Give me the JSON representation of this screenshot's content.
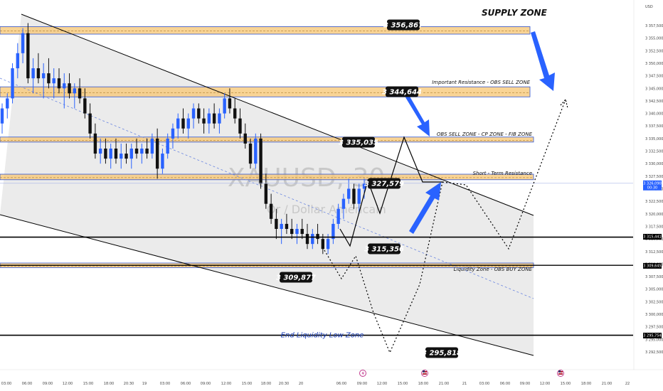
{
  "chart_data": {
    "type": "candlestick",
    "currency": "USD",
    "watermark": {
      "symbol": "XAUUSD, 30",
      "name": "Or / Dollar Américain"
    },
    "title": "SUPPLY ZONE",
    "y_axis": {
      "range": [
        3290,
        3360
      ],
      "ticks": [
        "3 292,500",
        "3 295,000",
        "3 297,500",
        "3 300,000",
        "3 302,500",
        "3 305,000",
        "3 307,500",
        "3 310,000",
        "3 312,500",
        "3 315,000",
        "3 317,500",
        "3 320,000",
        "3 322,500",
        "3 325,000",
        "3 327,500",
        "3 330,000",
        "3 332,500",
        "3 335,000",
        "3 337,500",
        "3 340,000",
        "3 342,500",
        "3 345,000",
        "3 347,500",
        "3 350,000",
        "3 352,500",
        "3 355,000",
        "3 357,500"
      ],
      "tick_values": [
        3292.5,
        3295,
        3297.5,
        3300,
        3302.5,
        3305,
        3307.5,
        3310,
        3312.5,
        3315,
        3317.5,
        3320,
        3322.5,
        3325,
        3327.5,
        3330,
        3332.5,
        3335,
        3337.5,
        3340,
        3342.5,
        3345,
        3347.5,
        3350,
        3352.5,
        3355,
        3357.5
      ],
      "tags": [
        {
          "value": 3326.09,
          "label": "3 326,090",
          "sub": "00:30",
          "color": "#2962ff"
        },
        {
          "value": 3315.441,
          "label": "3 315,441",
          "color": "#000000"
        },
        {
          "value": 3309.645,
          "label": "3 309,645",
          "color": "#000000"
        },
        {
          "value": 3295.754,
          "label": "3 295,754",
          "color": "#000000"
        }
      ]
    },
    "x_axis": {
      "ticks": [
        "03:00",
        "06:00",
        "09:00",
        "12:00",
        "15:00",
        "18:00",
        "20:30",
        "19",
        "03:00",
        "06:00",
        "09:00",
        "12:00",
        "15:00",
        "18:00",
        "20:30",
        "20",
        "06:00",
        "09:00",
        "12:00",
        "15:00",
        "18:00",
        "21:00",
        "21",
        "03:00",
        "06:00",
        "09:00",
        "12:00",
        "15:00",
        "18:00",
        "21:00",
        "22"
      ],
      "tick_x": [
        9,
        38,
        67,
        95,
        124,
        153,
        181,
        203,
        232,
        261,
        289,
        318,
        347,
        374,
        399,
        423,
        480,
        509,
        537,
        566,
        595,
        624,
        653,
        681,
        710,
        738,
        766,
        795,
        824,
        853,
        882
      ]
    },
    "zones": [
      {
        "name": "SUPPLY ZONE",
        "label": "SUPPLY ZONE",
        "low": 3355.8,
        "high": 3357.3,
        "price_label": "3 356,867"
      },
      {
        "name": "OBS SELL ZONE",
        "label": "Important Resistance - OBS SELL ZONE",
        "low": 3343.3,
        "high": 3345.3,
        "price_label": "3 344,644"
      },
      {
        "name": "CP ZONE",
        "label": "OBS SELL ZONE - CP ZONE - FIB ZONE",
        "low": 3334.3,
        "high": 3335.3,
        "price_label": "3 335,035"
      },
      {
        "name": "Short Term Resistance",
        "label": "Short - Term Resistance",
        "low": 3326.8,
        "high": 3327.9,
        "price_label": "3 327,579"
      },
      {
        "name": "Liquidity Zone",
        "label": "Liquidity Zone - OBS BUY ZONE",
        "low": 3309.3,
        "high": 3310.2,
        "price_label": "3 309,877"
      }
    ],
    "lines": [
      {
        "name": "support",
        "value": 3315.356,
        "price_label": "3 315,356"
      },
      {
        "name": "end-liquidity",
        "value": 3295.818,
        "price_label": "3 295,818",
        "label": "End Liquidity Low Zone"
      }
    ],
    "candles": [
      [
        3338,
        3342,
        3336,
        3341
      ],
      [
        3341,
        3344,
        3339,
        3343
      ],
      [
        3343,
        3350,
        3342,
        3349
      ],
      [
        3349,
        3354,
        3347,
        3352
      ],
      [
        3352,
        3357,
        3350,
        3356
      ],
      [
        3356,
        3358,
        3346,
        3347
      ],
      [
        3347,
        3351,
        3344,
        3349
      ],
      [
        3349,
        3352,
        3346,
        3347
      ],
      [
        3347,
        3350,
        3343,
        3348
      ],
      [
        3348,
        3351,
        3345,
        3346
      ],
      [
        3346,
        3349,
        3343,
        3347
      ],
      [
        3347,
        3349,
        3344,
        3345
      ],
      [
        3345,
        3348,
        3341,
        3346
      ],
      [
        3346,
        3348,
        3343,
        3344
      ],
      [
        3344,
        3346,
        3341,
        3345
      ],
      [
        3345,
        3347,
        3342,
        3343
      ],
      [
        3343,
        3345,
        3339,
        3340
      ],
      [
        3340,
        3342,
        3335,
        3336
      ],
      [
        3336,
        3338,
        3331,
        3332
      ],
      [
        3332,
        3335,
        3330,
        3333
      ],
      [
        3333,
        3335,
        3330,
        3331
      ],
      [
        3331,
        3334,
        3329,
        3333
      ],
      [
        3333,
        3335,
        3330,
        3331
      ],
      [
        3331,
        3334,
        3329,
        3332
      ],
      [
        3332,
        3334,
        3330,
        3331
      ],
      [
        3331,
        3334,
        3329,
        3333
      ],
      [
        3333,
        3335,
        3331,
        3332
      ],
      [
        3332,
        3334,
        3330,
        3333
      ],
      [
        3333,
        3335,
        3331,
        3332
      ],
      [
        3332,
        3336,
        3331,
        3335
      ],
      [
        3335,
        3337,
        3327,
        3329
      ],
      [
        3329,
        3333,
        3328,
        3332
      ],
      [
        3332,
        3336,
        3331,
        3335
      ],
      [
        3335,
        3338,
        3333,
        3337
      ],
      [
        3337,
        3340,
        3335,
        3339
      ],
      [
        3339,
        3341,
        3336,
        3337
      ],
      [
        3337,
        3340,
        3335,
        3339
      ],
      [
        3339,
        3342,
        3337,
        3341
      ],
      [
        3341,
        3342,
        3338,
        3339
      ],
      [
        3339,
        3341,
        3336,
        3338
      ],
      [
        3338,
        3341,
        3336,
        3340
      ],
      [
        3340,
        3342,
        3337,
        3338
      ],
      [
        3338,
        3341,
        3336,
        3340
      ],
      [
        3340,
        3344,
        3339,
        3343
      ],
      [
        3343,
        3345,
        3340,
        3341
      ],
      [
        3341,
        3343,
        3338,
        3339
      ],
      [
        3339,
        3341,
        3335,
        3336
      ],
      [
        3336,
        3338,
        3333,
        3334
      ],
      [
        3334,
        3335,
        3329,
        3330
      ],
      [
        3330,
        3336,
        3329,
        3335
      ],
      [
        3335,
        3336,
        3325,
        3326
      ],
      [
        3326,
        3328,
        3321,
        3322
      ],
      [
        3322,
        3324,
        3318,
        3319
      ],
      [
        3319,
        3321,
        3315,
        3317
      ],
      [
        3317,
        3319,
        3314,
        3318
      ],
      [
        3318,
        3320,
        3316,
        3317
      ],
      [
        3317,
        3319,
        3315,
        3316
      ],
      [
        3316,
        3318,
        3314,
        3317
      ],
      [
        3317,
        3319,
        3315,
        3316
      ],
      [
        3316,
        3318,
        3313,
        3314
      ],
      [
        3314,
        3317,
        3313,
        3316
      ],
      [
        3316,
        3318,
        3314,
        3315
      ],
      [
        3315,
        3316,
        3312,
        3313
      ],
      [
        3313,
        3316,
        3312,
        3315
      ],
      [
        3315,
        3319,
        3314,
        3318
      ],
      [
        3318,
        3322,
        3317,
        3321
      ],
      [
        3321,
        3324,
        3319,
        3323
      ],
      [
        3323,
        3327,
        3322,
        3325
      ],
      [
        3325,
        3326,
        3321,
        3322
      ],
      [
        3322,
        3326,
        3320,
        3325
      ],
      [
        3325,
        3327,
        3323,
        3326
      ]
    ]
  },
  "annotations": {
    "currency_label": "USD"
  }
}
